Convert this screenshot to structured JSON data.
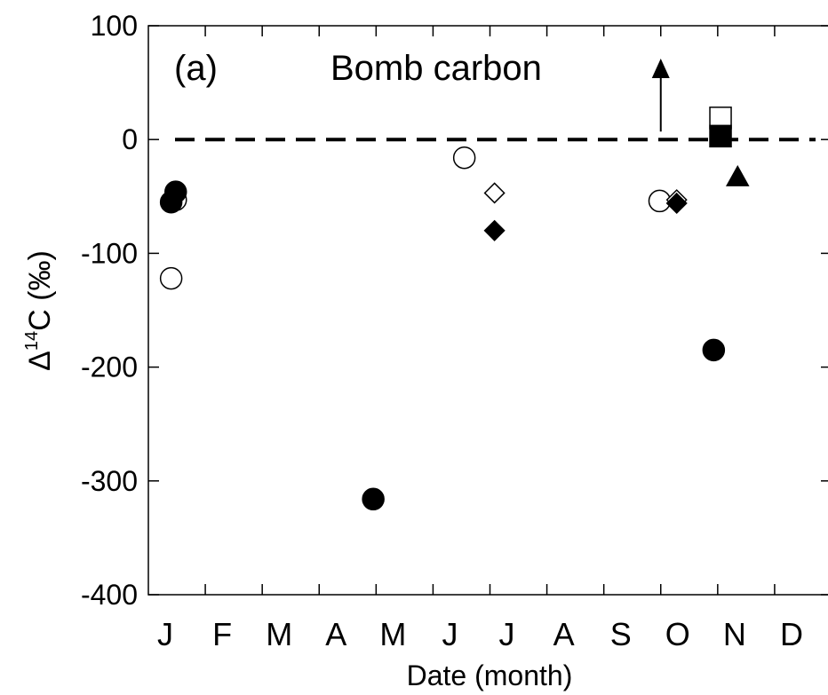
{
  "chart_data": {
    "type": "scatter",
    "panel_label": "(a)",
    "annotation": "Bomb carbon",
    "xlabel": "Date (month)",
    "ylabel_prefix": "Δ",
    "ylabel_superscript": "14",
    "ylabel_suffix": "C (‰)",
    "ylim": [
      -400,
      100
    ],
    "xlim": [
      0,
      12
    ],
    "yticks": [
      -400,
      -300,
      -200,
      -100,
      0,
      100
    ],
    "ytick_labels": [
      "-400",
      "-300",
      "-200",
      "-100",
      "0",
      "100"
    ],
    "month_labels": [
      "J",
      "F",
      "M",
      "A",
      "M",
      "J",
      "J",
      "A",
      "S",
      "O",
      "N",
      "D"
    ],
    "reference_line": {
      "y": 0,
      "style": "dashed"
    },
    "arrow": {
      "x": 9.0,
      "y_from": 7,
      "y_to": 68
    },
    "grid": false,
    "legend": "none",
    "series": [
      {
        "marker": "circle-open",
        "points": [
          {
            "x": 0.4,
            "y": -122
          },
          {
            "x": 0.48,
            "y": -53
          },
          {
            "x": 5.55,
            "y": -16
          },
          {
            "x": 8.98,
            "y": -54
          }
        ]
      },
      {
        "marker": "circle-filled",
        "points": [
          {
            "x": 0.4,
            "y": -55
          },
          {
            "x": 0.48,
            "y": -46
          },
          {
            "x": 3.95,
            "y": -316
          },
          {
            "x": 9.93,
            "y": -185
          }
        ]
      },
      {
        "marker": "diamond-open",
        "points": [
          {
            "x": 6.08,
            "y": -47
          },
          {
            "x": 9.28,
            "y": -53
          }
        ]
      },
      {
        "marker": "diamond-filled",
        "points": [
          {
            "x": 6.08,
            "y": -80
          },
          {
            "x": 9.28,
            "y": -56
          }
        ]
      },
      {
        "marker": "square-open",
        "points": [
          {
            "x": 10.05,
            "y": 19
          }
        ]
      },
      {
        "marker": "square-filled",
        "points": [
          {
            "x": 10.05,
            "y": 3
          }
        ]
      },
      {
        "marker": "triangle-filled",
        "points": [
          {
            "x": 10.35,
            "y": -33
          }
        ]
      }
    ]
  }
}
